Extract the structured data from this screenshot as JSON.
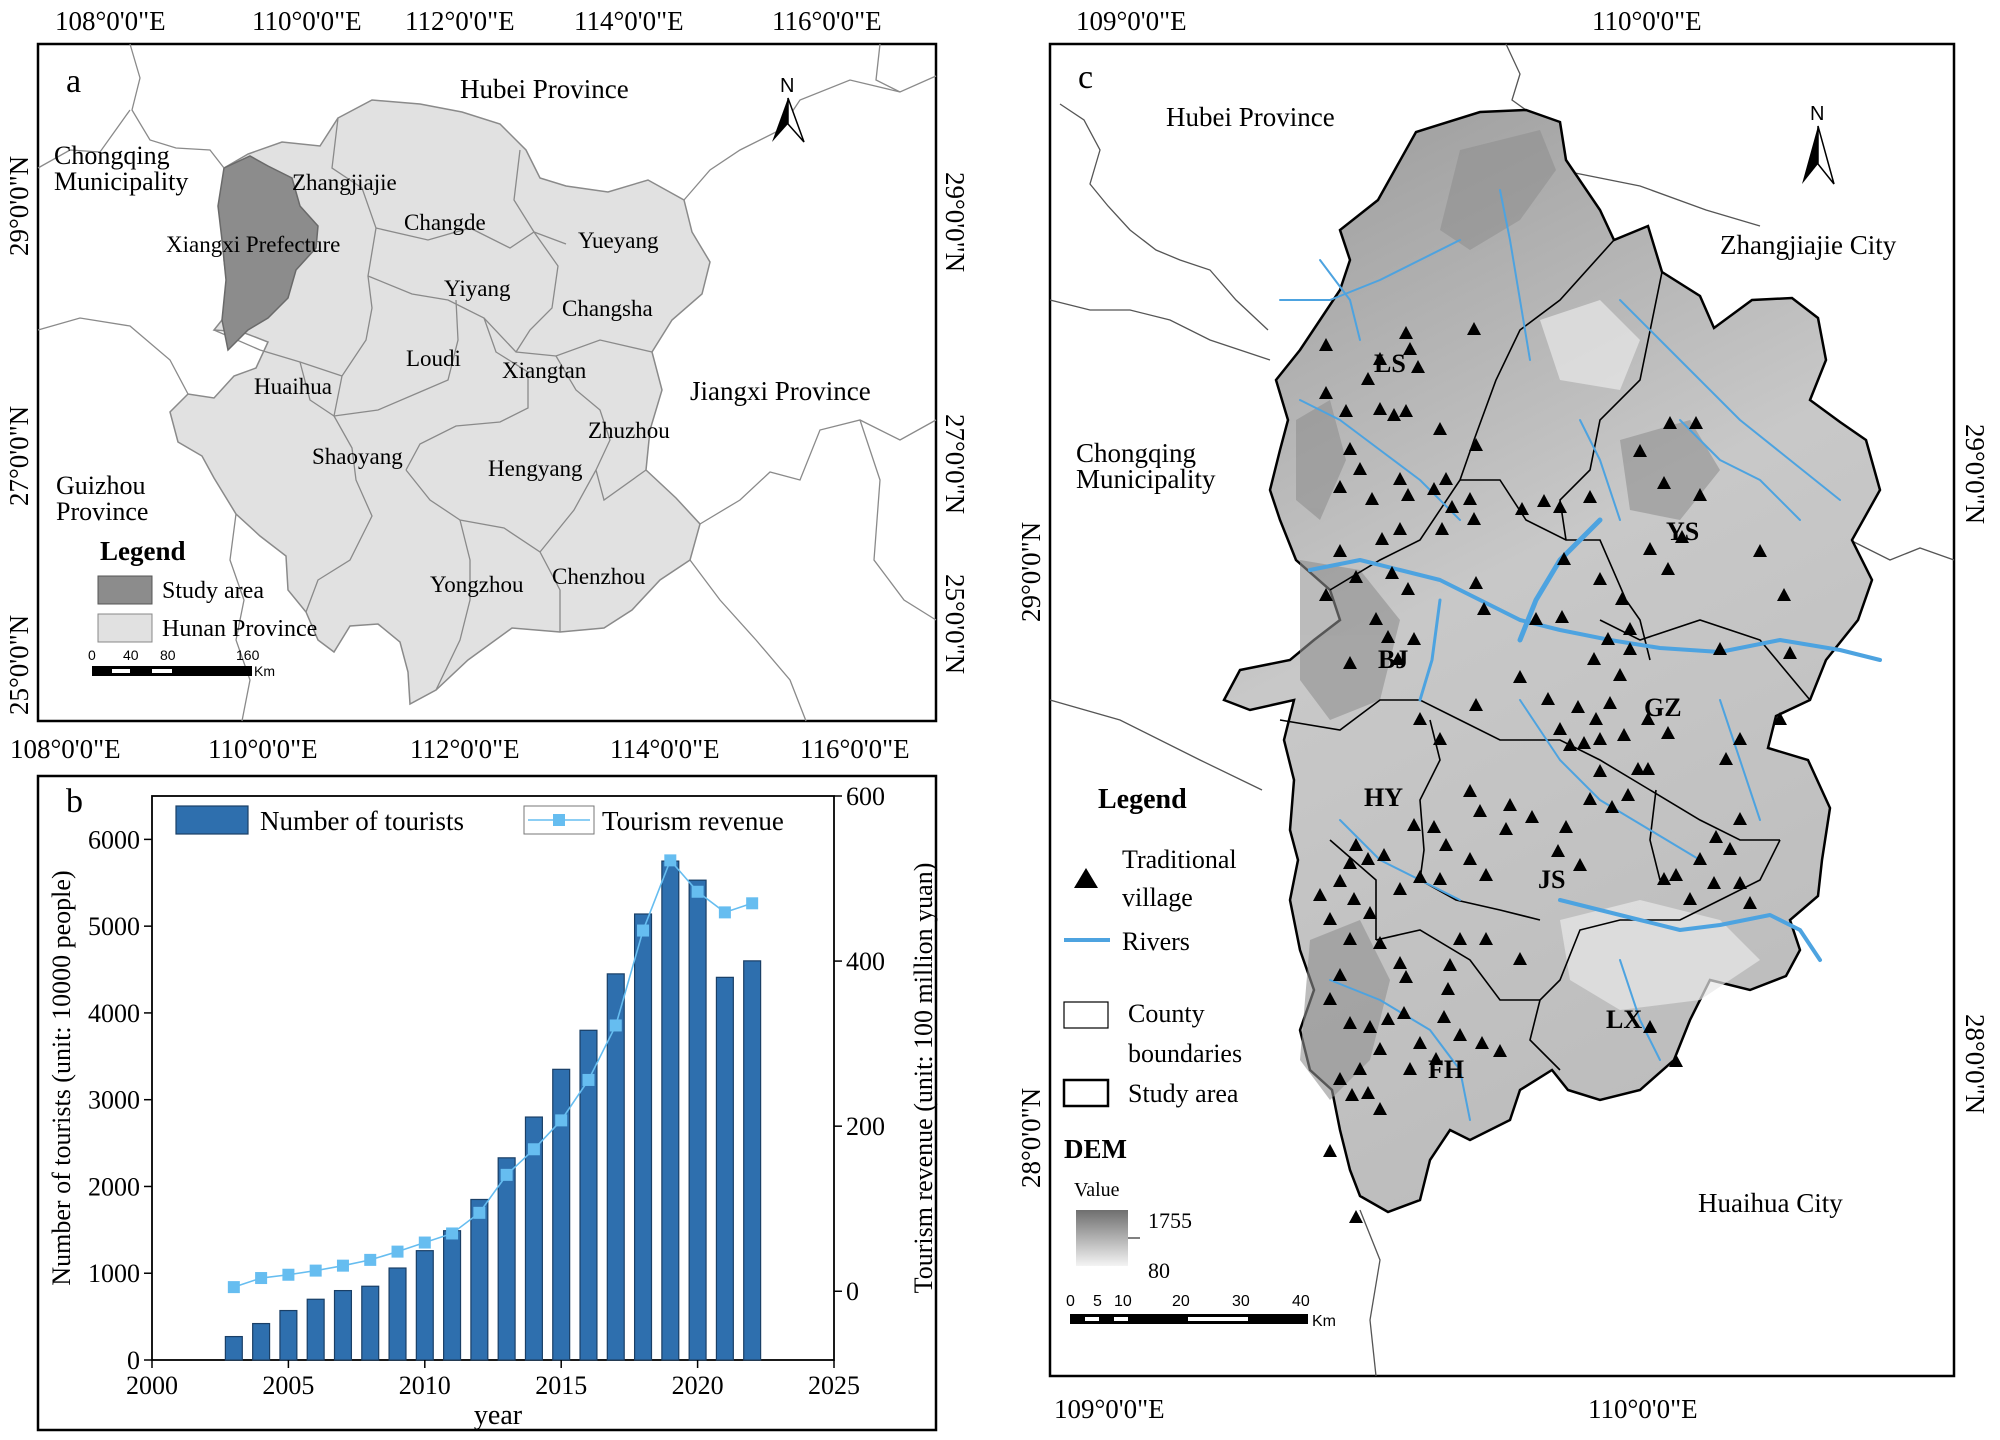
{
  "panel_a": {
    "letter": "a",
    "top_ticks": [
      "108°0'0\"E",
      "110°0'0\"E",
      "112°0'0\"E",
      "114°0'0\"E",
      "116°0'0\"E"
    ],
    "bottom_ticks": [
      "108°0'0\"E",
      "110°0'0\"E",
      "112°0'0\"E",
      "114°0'0\"E",
      "116°0'0\"E"
    ],
    "lat_ticks": [
      "29°0'0\"N",
      "27°0'0\"N",
      "25°0'0\"N"
    ],
    "north": "N",
    "neighbors": {
      "hubei": "Hubei Province",
      "chongqing_1": "Chongqing",
      "chongqing_2": "Municipality",
      "jiangxi": "Jiangxi Province",
      "guizhou_1": "Guizhou",
      "guizhou_2": "Province"
    },
    "cities": {
      "zhangjiajie": "Zhangjiajie",
      "xiangxi": "Xiangxi Prefecture",
      "changde": "Changde",
      "yueyang": "Yueyang",
      "yiyang": "Yiyang",
      "changsha": "Changsha",
      "loudi": "Loudi",
      "xiangtan": "Xiangtan",
      "huaihua": "Huaihua",
      "zhuzhou": "Zhuzhou",
      "shaoyang": "Shaoyang",
      "hengyang": "Hengyang",
      "yongzhou": "Yongzhou",
      "chenzhou": "Chenzhou"
    },
    "legend": {
      "title": "Legend",
      "study_area": "Study area",
      "hunan": "Hunan Province"
    },
    "scale": {
      "labels": [
        "0",
        "40",
        "80",
        "160"
      ],
      "unit": "Km"
    },
    "colors": {
      "study_area": "#8c8c8c",
      "hunan": "#e1e1e1",
      "boundary": "#8a8a8a"
    }
  },
  "panel_b": {
    "letter": "b",
    "chart_data": {
      "type": "bar",
      "x": [
        2003,
        2004,
        2005,
        2006,
        2007,
        2008,
        2009,
        2010,
        2011,
        2012,
        2013,
        2014,
        2015,
        2016,
        2017,
        2018,
        2019,
        2020,
        2021,
        2022
      ],
      "series": [
        {
          "name": "Number of tourists",
          "type": "bar",
          "axis": "left",
          "color": "#2e6fae",
          "values": [
            270,
            420,
            570,
            700,
            800,
            850,
            1060,
            1260,
            1490,
            1850,
            2330,
            2800,
            3350,
            3800,
            4450,
            5140,
            5750,
            5530,
            4410,
            4600
          ]
        },
        {
          "name": "Tourism revenue",
          "type": "line",
          "axis": "right",
          "color": "#66bdf0",
          "values": [
            5,
            16,
            20,
            25,
            31,
            38,
            48,
            59,
            70,
            95,
            141,
            172,
            207,
            256,
            322,
            437,
            522,
            484,
            459,
            470
          ]
        }
      ],
      "xlabel": "year",
      "ylabel_left": "Number of tourists  (unit: 10000 people)",
      "ylabel_right": "Tourism revenue  (unit: 100 million yuan)",
      "xlim": [
        2000,
        2025
      ],
      "ylim_left": [
        0,
        6500
      ],
      "ylim_right": [
        -83.3,
        600
      ],
      "x_ticks": [
        "2000",
        "2005",
        "2010",
        "2015",
        "2020",
        "2025"
      ],
      "y_ticks_left": [
        "0",
        "1000",
        "2000",
        "3000",
        "4000",
        "5000",
        "6000"
      ],
      "y_ticks_right": [
        "0",
        "200",
        "400",
        "600"
      ],
      "legend_position": "top"
    }
  },
  "panel_c": {
    "letter": "c",
    "top_ticks": [
      "109°0'0\"E",
      "110°0'0\"E"
    ],
    "bottom_ticks": [
      "109°0'0\"E",
      "110°0'0\"E"
    ],
    "lat_ticks": [
      "29°0'0\"N",
      "28°0'0\"N"
    ],
    "north": "N",
    "neighbors": {
      "hubei": "Hubei Province",
      "zhangjiajie": "Zhangjiajie City",
      "chongqing_1": "Chongqing",
      "chongqing_2": "Municipality",
      "huaihua": "Huaihua City"
    },
    "counties": {
      "ls": "LS",
      "ys": "YS",
      "bj": "BJ",
      "gz": "GZ",
      "hy": "HY",
      "js": "JS",
      "fh": "FH",
      "lx": "LX"
    },
    "legend": {
      "title": "Legend",
      "village_1": "Traditional",
      "village_2": "village",
      "rivers": "Rivers",
      "county_1": "County",
      "county_2": "boundaries",
      "study": "Study area",
      "dem": "DEM",
      "value": "Value",
      "dem_max": "1755",
      "dem_min": "80"
    },
    "scale": {
      "labels": [
        "0",
        "5",
        "10",
        "20",
        "30",
        "40"
      ],
      "unit": "Km"
    },
    "colors": {
      "river": "#4da3e0",
      "village": "#000000",
      "dem_high": "#7a7a7a",
      "dem_low": "#f2f2f2"
    }
  }
}
